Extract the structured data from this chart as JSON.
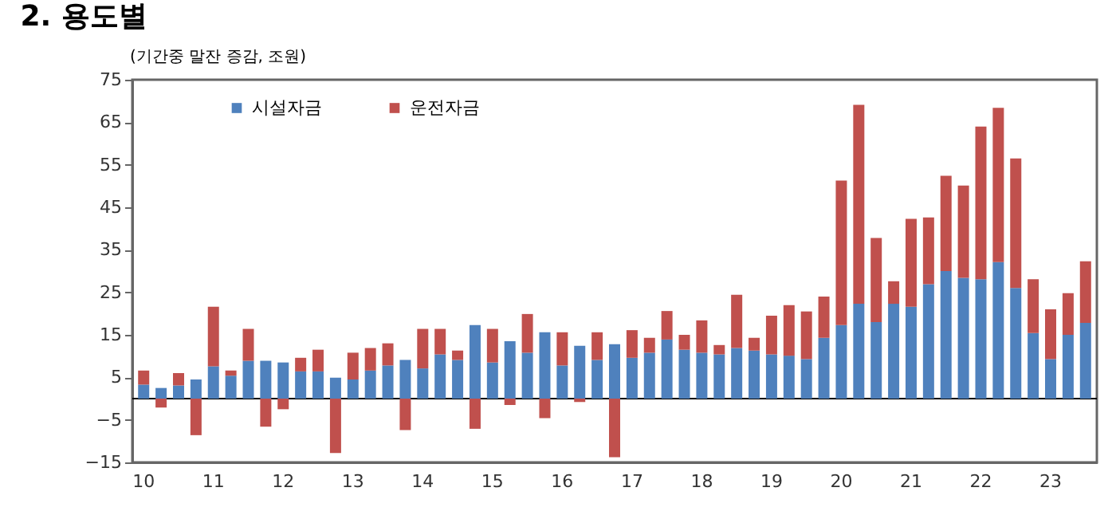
{
  "chart_data": {
    "type": "bar",
    "title": "2. 용도별",
    "ylabel": "(기간중 말잔 증감, 조원)",
    "categories": [
      "10",
      null,
      null,
      null,
      "11",
      null,
      null,
      null,
      "12",
      null,
      null,
      null,
      "13",
      null,
      null,
      null,
      "14",
      null,
      null,
      null,
      "15",
      null,
      null,
      null,
      "16",
      null,
      null,
      null,
      "17",
      null,
      null,
      null,
      "18",
      null,
      null,
      null,
      "19",
      null,
      null,
      null,
      "20",
      null,
      null,
      null,
      "21",
      null,
      null,
      null,
      "22",
      null,
      null,
      null,
      "23",
      null,
      null
    ],
    "stacked": true,
    "series": [
      {
        "name": "시설자금",
        "color": "#4f81bd",
        "values": [
          3.3,
          2.5,
          3.1,
          4.5,
          7.6,
          5.4,
          8.9,
          8.9,
          8.5,
          6.4,
          6.4,
          4.9,
          4.5,
          6.6,
          7.8,
          9.1,
          7.1,
          10.4,
          9.1,
          17.3,
          8.5,
          13.5,
          10.8,
          15.6,
          7.8,
          12.4,
          9.1,
          12.8,
          9.6,
          10.8,
          13.9,
          11.5,
          10.8,
          10.4,
          11.9,
          11.3,
          10.4,
          10.1,
          9.3,
          14.3,
          17.3,
          22.3,
          18.0,
          22.3,
          21.6,
          26.9,
          30.0,
          28.4,
          28.1,
          32.1,
          26.0,
          15.4,
          9.3,
          15.0,
          17.8
        ]
      },
      {
        "name": "운전자금",
        "color": "#c0504d",
        "values": [
          3.3,
          -2.1,
          2.9,
          -8.6,
          14.0,
          1.2,
          7.5,
          -6.6,
          -2.5,
          3.2,
          5.1,
          -12.8,
          6.3,
          5.3,
          5.2,
          -7.4,
          9.3,
          6.0,
          2.2,
          -7.1,
          7.9,
          -1.5,
          9.1,
          -4.6,
          7.8,
          -0.8,
          6.5,
          -13.8,
          6.5,
          3.5,
          6.7,
          3.5,
          7.6,
          2.2,
          12.5,
          3.0,
          9.1,
          11.9,
          11.2,
          9.7,
          34.0,
          46.8,
          19.8,
          5.3,
          20.7,
          15.7,
          22.4,
          21.7,
          35.9,
          36.3,
          30.5,
          12.7,
          11.7,
          9.8,
          14.5
        ]
      }
    ],
    "ylim": [
      -15,
      75
    ],
    "yticks": [
      -15,
      -5,
      5,
      15,
      25,
      35,
      45,
      55,
      65,
      75
    ],
    "grid": false,
    "legend": "top left"
  }
}
